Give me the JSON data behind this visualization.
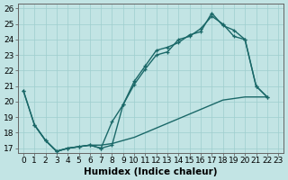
{
  "background_color": "#c2e4e4",
  "grid_color": "#9ecece",
  "line_color": "#1a6868",
  "xlabel": "Humidex (Indice chaleur)",
  "xlim_min": -0.5,
  "xlim_max": 23.5,
  "ylim_min": 16.7,
  "ylim_max": 26.3,
  "yticks": [
    17,
    18,
    19,
    20,
    21,
    22,
    23,
    24,
    25,
    26
  ],
  "xticks": [
    0,
    1,
    2,
    3,
    4,
    5,
    6,
    7,
    8,
    9,
    10,
    11,
    12,
    13,
    14,
    15,
    16,
    17,
    18,
    19,
    20,
    21,
    22,
    23
  ],
  "line1_x": [
    0,
    1,
    2,
    3,
    4,
    5,
    6,
    7,
    8,
    9,
    10,
    11,
    12,
    13,
    14,
    15,
    16,
    17,
    18,
    19,
    20,
    21,
    22
  ],
  "line1_y": [
    20.7,
    18.5,
    17.5,
    16.8,
    17.0,
    17.1,
    17.2,
    17.0,
    18.7,
    19.8,
    21.3,
    22.3,
    23.3,
    23.5,
    23.8,
    24.3,
    24.5,
    25.7,
    24.9,
    24.6,
    24.0,
    21.0,
    20.3
  ],
  "line2_x": [
    0,
    1,
    2,
    3,
    4,
    5,
    6,
    7,
    8,
    9,
    10,
    11,
    12,
    13,
    14,
    15,
    16,
    17,
    18,
    19,
    20,
    21,
    22
  ],
  "line2_y": [
    20.7,
    18.5,
    17.5,
    16.8,
    17.0,
    17.1,
    17.2,
    17.0,
    17.2,
    19.8,
    21.1,
    22.1,
    23.0,
    23.2,
    24.0,
    24.2,
    24.7,
    25.5,
    25.0,
    24.2,
    24.0,
    21.0,
    20.3
  ],
  "line3_x": [
    1,
    2,
    3,
    4,
    5,
    6,
    7,
    8,
    9,
    10,
    11,
    12,
    13,
    14,
    15,
    16,
    17,
    18,
    19,
    20,
    22
  ],
  "line3_y": [
    18.5,
    17.5,
    16.8,
    17.0,
    17.1,
    17.2,
    17.2,
    17.3,
    17.5,
    17.7,
    18.0,
    18.3,
    18.6,
    18.9,
    19.2,
    19.5,
    19.8,
    20.1,
    20.2,
    20.3,
    20.3
  ],
  "lw": 1.0,
  "marker_size": 3.5,
  "font_size": 6.5,
  "xlabel_fontsize": 7.5
}
